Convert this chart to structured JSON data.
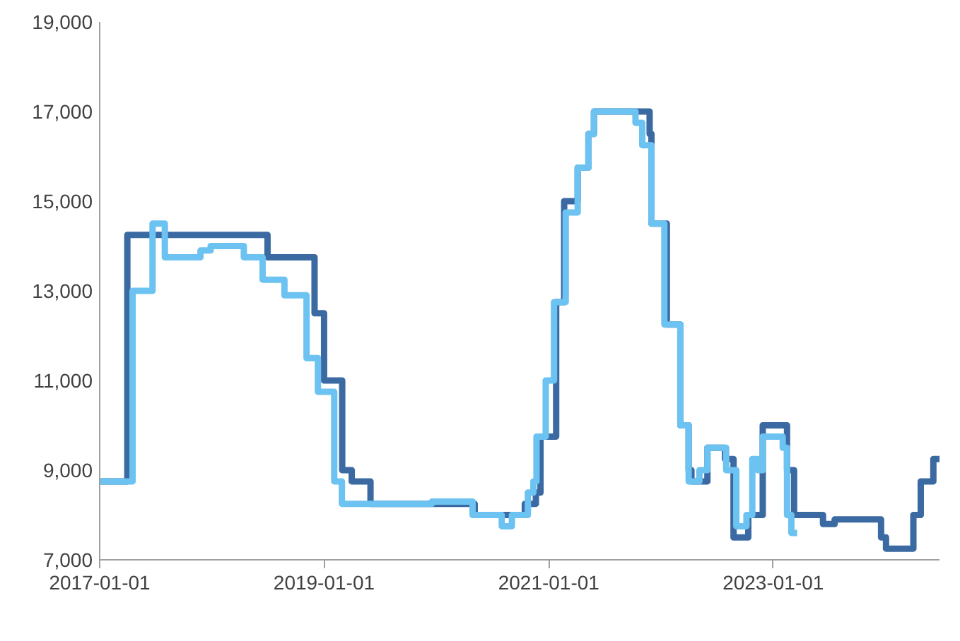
{
  "chart_data": {
    "type": "step",
    "xlim": [
      "2017-01-01",
      "2024-06-25"
    ],
    "xticks": [
      "2017-01-01",
      "2019-01-01",
      "2021-01-01",
      "2023-01-01"
    ],
    "ylim": [
      7000,
      19000
    ],
    "yticks": [
      {
        "value": 7000,
        "label": "7,000"
      },
      {
        "value": 9000,
        "label": "9,000"
      },
      {
        "value": 11000,
        "label": "11,000"
      },
      {
        "value": 13000,
        "label": "13,000"
      },
      {
        "value": 15000,
        "label": "15,000"
      },
      {
        "value": 17000,
        "label": "17,000"
      },
      {
        "value": 19000,
        "label": "19,000"
      }
    ],
    "grid": false,
    "line_style": "solid",
    "marker": "none",
    "series": [
      {
        "color": "#3b6aa3",
        "x": [
          "2017-01-01",
          "2017-04-01",
          "2018-07-01",
          "2018-12-01",
          "2019-01-01",
          "2019-03-01",
          "2019-04-01",
          "2019-06-01",
          "2020-05-05",
          "2020-10-15",
          "2020-11-20",
          "2020-12-05",
          "2021-01-25",
          "2021-02-20",
          "2021-04-05",
          "2021-05-10",
          "2021-05-28",
          "2021-11-25",
          "2021-12-01",
          "2022-01-20",
          "2022-03-05",
          "2022-04-01",
          "2022-04-10",
          "2022-06-01",
          "2022-07-28",
          "2022-08-25",
          "2022-10-12",
          "2022-11-28",
          "2023-02-15",
          "2023-03-10",
          "2023-06-12",
          "2023-07-20",
          "2023-12-18",
          "2024-01-03",
          "2024-04-01",
          "2024-04-25",
          "2024-06-05",
          "2024-06-25"
        ],
        "values": [
          8750,
          14250,
          13750,
          12500,
          11000,
          9000,
          8750,
          8250,
          8000,
          8250,
          8500,
          9750,
          12750,
          15000,
          15750,
          16500,
          17000,
          16500,
          14500,
          12250,
          10000,
          9000,
          8750,
          9500,
          9250,
          7500,
          8000,
          10000,
          9000,
          8000,
          7800,
          7900,
          7500,
          7250,
          8000,
          8750,
          9250,
          9250
        ]
      },
      {
        "color": "#6cc2f0",
        "x": [
          "2017-01-01",
          "2017-04-18",
          "2017-06-22",
          "2017-08-01",
          "2017-11-25",
          "2017-12-28",
          "2018-04-15",
          "2018-06-15",
          "2018-08-25",
          "2018-11-05",
          "2018-12-12",
          "2019-02-03",
          "2019-02-28",
          "2019-12-18",
          "2020-04-28",
          "2020-08-01",
          "2020-09-03",
          "2020-10-25",
          "2020-11-12",
          "2020-11-22",
          "2020-12-22",
          "2021-01-18",
          "2021-02-25",
          "2021-04-05",
          "2021-05-10",
          "2021-05-28",
          "2021-10-10",
          "2021-11-01",
          "2021-12-01",
          "2022-01-12",
          "2022-03-05",
          "2022-04-01",
          "2022-05-06",
          "2022-06-01",
          "2022-08-01",
          "2022-09-03",
          "2022-10-06",
          "2022-10-25",
          "2022-11-12",
          "2022-11-28",
          "2023-02-01",
          "2023-02-15",
          "2023-03-01",
          "2023-03-20"
        ],
        "values": [
          8750,
          13000,
          14500,
          13750,
          13900,
          14000,
          13750,
          13250,
          12900,
          11500,
          10750,
          8750,
          8250,
          8300,
          8000,
          7750,
          8000,
          8500,
          8750,
          9750,
          11000,
          12750,
          14750,
          15750,
          16500,
          17000,
          16750,
          16250,
          14500,
          12250,
          10000,
          8750,
          9000,
          9500,
          9000,
          7750,
          8000,
          9250,
          9000,
          9750,
          9500,
          8000,
          7600,
          7600
        ]
      }
    ]
  }
}
